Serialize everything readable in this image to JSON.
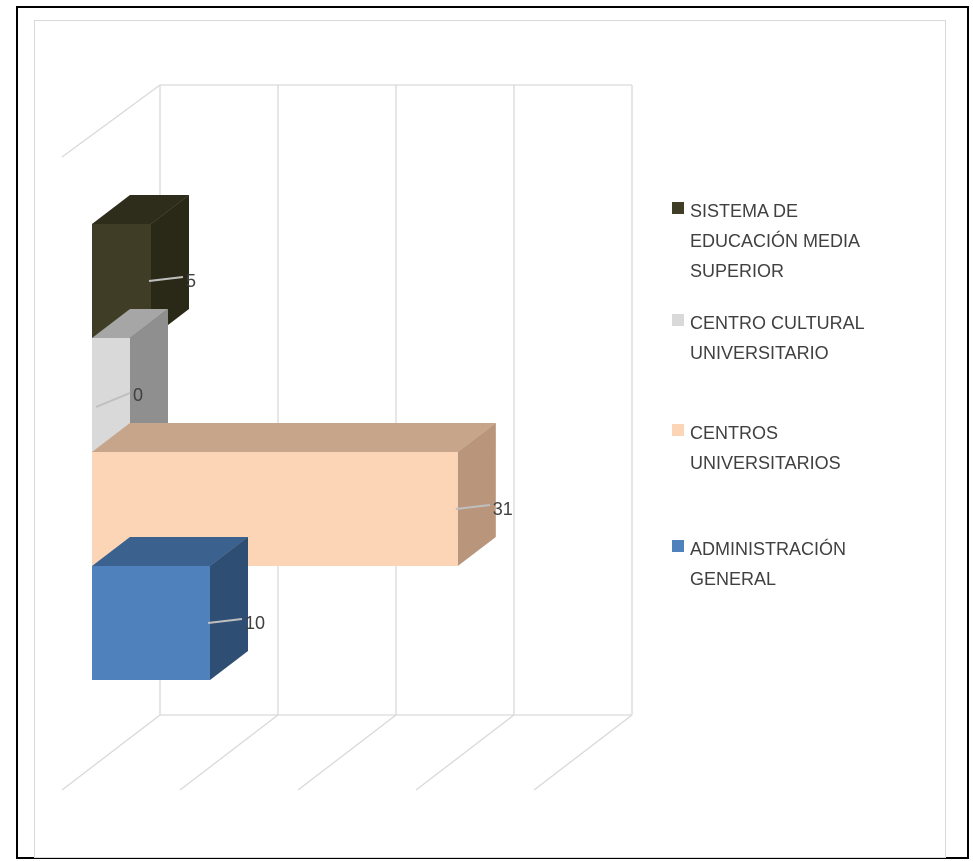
{
  "chart_data": {
    "type": "bar",
    "orientation": "horizontal",
    "three_d": true,
    "categories": [
      "SISTEMA DE EDUCACIÓN MEDIA SUPERIOR",
      "CENTRO CULTURAL UNIVERSITARIO",
      "CENTROS UNIVERSITARIOS",
      "ADMINISTRACIÓN GENERAL"
    ],
    "values": [
      5,
      0,
      31,
      10
    ],
    "data_labels": [
      "5",
      "0",
      "31",
      "10"
    ],
    "colors": [
      "#3f3d26",
      "#d9d9d9",
      "#fbd5b5",
      "#4f81bd"
    ],
    "side_colors": [
      "#2a2917",
      "#8f8f8f",
      "#b8957b",
      "#2f4e74"
    ],
    "top_colors": [
      "#2e2d1b",
      "#a6a6a6",
      "#c7a58b",
      "#3b628f"
    ],
    "xlim": [
      0,
      40
    ],
    "grid": true,
    "legend_position": "right",
    "title": "",
    "xlabel": "",
    "ylabel": ""
  },
  "legend": {
    "items": [
      {
        "label": "SISTEMA DE EDUCACIÓN MEDIA SUPERIOR",
        "color": "#3f3d26"
      },
      {
        "label": "CENTRO CULTURAL UNIVERSITARIO",
        "color": "#d9d9d9"
      },
      {
        "label": "CENTROS UNIVERSITARIOS",
        "color": "#fbd5b5"
      },
      {
        "label": "ADMINISTRACIÓN GENERAL",
        "color": "#4f81bd"
      }
    ]
  }
}
